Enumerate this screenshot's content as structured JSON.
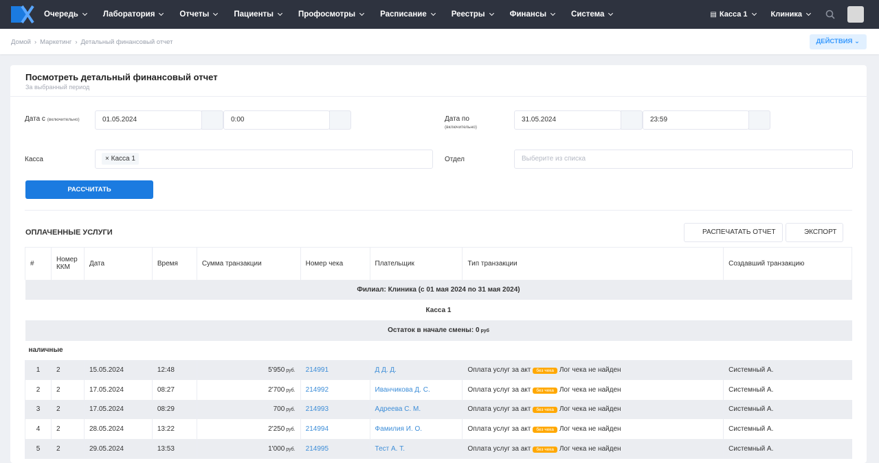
{
  "nav": {
    "items": [
      "Очередь",
      "Лаборатория",
      "Отчеты",
      "Пациенты",
      "Профосмотры",
      "Расписание",
      "Реестры",
      "Финансы",
      "Система"
    ],
    "kassa": "Касса 1",
    "clinic": "Клиника"
  },
  "breadcrumbs": [
    "Домой",
    "Маркетинг",
    "Детальный финансовый отчет"
  ],
  "actions": "ДЕЙСТВИЯ",
  "card": {
    "title": "Посмотреть детальный финансовый отчет",
    "subtitle": "За выбранный период"
  },
  "form": {
    "date_from_label": "Дата с",
    "date_from_hint": "(включительно)",
    "date_from": "01.05.2024",
    "time_from": "0:00",
    "date_to_label": "Дата по",
    "date_to_hint": "(включительно)",
    "date_to": "31.05.2024",
    "time_to": "23:59",
    "kassa_label": "Касса",
    "kassa_tag": "Касса 1",
    "department_label": "Отдел",
    "department_placeholder": "Выберите из списка",
    "submit": "РАССЧИТАТЬ"
  },
  "section": {
    "title": "ОПЛАЧЕННЫЕ УСЛУГИ",
    "print": "РАСПЕЧАТАТЬ ОТЧЕТ",
    "export": "ЭКСПОРТ"
  },
  "table": {
    "headers": [
      "#",
      "Номер ККМ",
      "Дата",
      "Время",
      "Сумма транзакции",
      "Номер чека",
      "Плательщик",
      "Тип транзакции",
      "Создавший транзакцию"
    ],
    "branch": "Филиал: Клиника (с 01 мая 2024 по 31 мая 2024)",
    "kassa": "Касса 1",
    "balance": "Остаток в начале смены: 0",
    "balance_unit": "руб",
    "payment_group": "наличные",
    "rows": [
      [
        "1",
        "2",
        "15.05.2024",
        "12:48",
        "5'950",
        "руб.",
        "214991",
        "Д Д. Д.",
        "Оплата услуг за акт",
        "без чека",
        "Лог чека не найден",
        "Системный А."
      ],
      [
        "2",
        "2",
        "17.05.2024",
        "08:27",
        "2'700",
        "руб.",
        "214992",
        "Иванчикова Д. С.",
        "Оплата услуг за акт",
        "без чека",
        "Лог чека не найден",
        "Системный А."
      ],
      [
        "3",
        "2",
        "17.05.2024",
        "08:29",
        "700",
        "руб.",
        "214993",
        "Адреева С. М.",
        "Оплата услуг за акт",
        "без чека",
        "Лог чека не найден",
        "Системный А."
      ],
      [
        "4",
        "2",
        "28.05.2024",
        "13:22",
        "2'250",
        "руб.",
        "214994",
        "Фамилия И. О.",
        "Оплата услуг за акт",
        "без чека",
        "Лог чека не найден",
        "Системный А."
      ],
      [
        "5",
        "2",
        "29.05.2024",
        "13:53",
        "1'000",
        "руб.",
        "214995",
        "Тест А. Т.",
        "Оплата услуг за акт",
        "без чека",
        "Лог чека не найден",
        "Системный А."
      ]
    ]
  }
}
